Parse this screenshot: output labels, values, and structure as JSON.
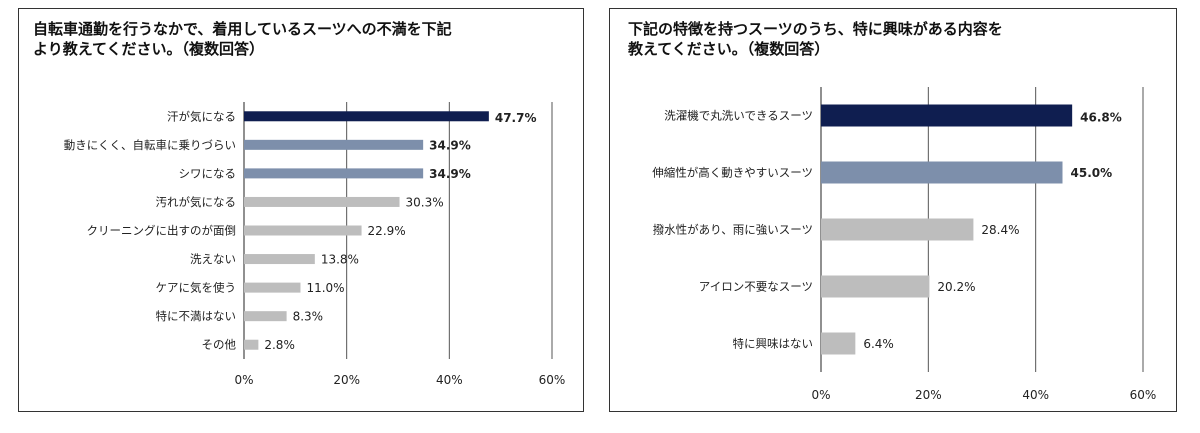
{
  "chart_data": [
    {
      "type": "bar",
      "orientation": "horizontal",
      "title_lines": [
        "自転車通勤を行うなかで、着用しているスーツへの不満を下記",
        "より教えてください。（複数回答）"
      ],
      "categories": [
        "汗が気になる",
        "動きにくく、自転車に乗りづらい",
        "シワになる",
        "汚れが気になる",
        "クリーニングに出すのが面倒",
        "洗えない",
        "ケアに気を使う",
        "特に不満はない",
        "その他"
      ],
      "values": [
        47.7,
        34.9,
        34.9,
        30.3,
        22.9,
        13.8,
        11.0,
        8.3,
        2.8
      ],
      "value_labels": [
        "47.7%",
        "34.9%",
        "34.9%",
        "30.3%",
        "22.9%",
        "13.8%",
        "11.0%",
        "8.3%",
        "2.8%"
      ],
      "bar_colors": [
        "#0f1e50",
        "#7d8fab",
        "#7d8fab",
        "#bdbdbd",
        "#bdbdbd",
        "#bdbdbd",
        "#bdbdbd",
        "#bdbdbd",
        "#bdbdbd"
      ],
      "xlim": [
        0,
        60
      ],
      "xticks": [
        "0%",
        "20%",
        "40%",
        "60%"
      ],
      "grid": true
    },
    {
      "type": "bar",
      "orientation": "horizontal",
      "title_lines": [
        "下記の特徴を持つスーツのうち、特に興味がある内容を",
        "教えてください。（複数回答）"
      ],
      "categories": [
        "洗濯機で丸洗いできるスーツ",
        "伸縮性が高く動きやすいスーツ",
        "撥水性があり、雨に強いスーツ",
        "アイロン不要なスーツ",
        "特に興味はない"
      ],
      "values": [
        46.8,
        45.0,
        28.4,
        20.2,
        6.4
      ],
      "value_labels": [
        "46.8%",
        "45.0%",
        "28.4%",
        "20.2%",
        "6.4%"
      ],
      "bar_colors": [
        "#0f1e50",
        "#7d8fab",
        "#bdbdbd",
        "#bdbdbd",
        "#bdbdbd"
      ],
      "xlim": [
        0,
        60
      ],
      "xticks": [
        "0%",
        "20%",
        "40%",
        "60%"
      ],
      "grid": true
    }
  ]
}
